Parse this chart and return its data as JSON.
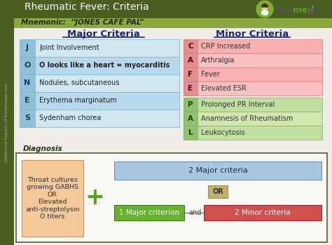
{
  "title": "Rheumatic Fever: Criteria",
  "mnemonic": "Mnemonic:  “JONES CAFE PAL”",
  "major_title": "Major Criteria",
  "minor_title": "Minor Criteria",
  "major_letters": [
    "J",
    "O",
    "N",
    "E",
    "S"
  ],
  "major_descriptions": [
    "Joint Involvement",
    "O looks like a heart = myocarditis",
    "Nodules, subcutaneous",
    "Erythema marginatum",
    "Sydenham chorea"
  ],
  "minor_letters_pink": [
    "C",
    "A",
    "F",
    "E"
  ],
  "minor_desc_pink": [
    "CRP Increased",
    "Arthralgia",
    "Fever",
    "Elevated ESR"
  ],
  "minor_letters_green": [
    "P",
    "A",
    "L"
  ],
  "minor_desc_green": [
    "Prolonged PR Interval",
    "Anamnesis of Rheumatism",
    "Leukocytosis"
  ],
  "diagnosis_label": "Diagnosis",
  "diagnosis_box_text": "Throat cultures\ngrowing GABHS\nOR\nElevated\nanti-streptolysin\nO titers",
  "diag_2major": "2 Major criteria",
  "diag_or": "OR",
  "diag_1major": "1 Major criterion",
  "diag_and": "and",
  "diag_2minor": "2 Minor criteria",
  "bg_color": "#f0ede8",
  "left_bar_color": "#4a5e20",
  "header_bg_color": "#f0ede8",
  "title_bar_color": "#4a5e20",
  "mnemonic_bar_color": "#8aaa40",
  "major_row_colors": [
    "#d0e8f0",
    "#b8d8ec",
    "#d0e8f0",
    "#b8d8ec",
    "#d0e8f0"
  ],
  "major_border_color": "#80b0c8",
  "major_letter_bg": "#90c0d8",
  "minor_row_pink": [
    "#f8b0b0",
    "#f8c0c0",
    "#f8b0b0",
    "#f8c0c0"
  ],
  "minor_border_pink": "#d08080",
  "minor_letter_pink": "#e09090",
  "minor_row_green": [
    "#c0e0a0",
    "#d0e8b0",
    "#c0e0a0"
  ],
  "minor_border_green": "#80b060",
  "minor_letter_green": "#90c070",
  "diag_border_color": "#506030",
  "diag_throat_bg": "#f5c898",
  "diag_throat_border": "#c8965a",
  "diag_2major_bg": "#a8c8e0",
  "diag_1major_bg": "#68b030",
  "diag_2minor_bg": "#d05050",
  "diag_or_bg": "#c0b070",
  "plus_color": "#58a020",
  "know_color": "#555555",
  "med_color": "#5a9e2a",
  "watermark_color": "#b8b8b8"
}
